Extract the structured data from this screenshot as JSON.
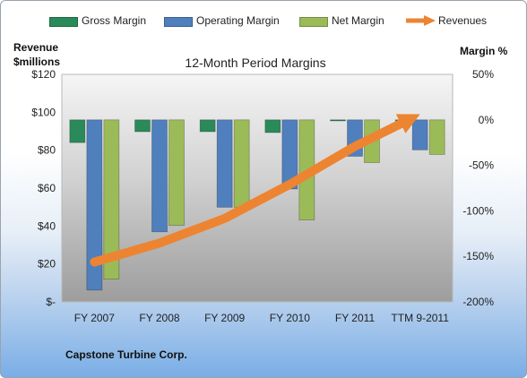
{
  "legend": {
    "gross": "Gross Margin",
    "operating": "Operating Margin",
    "net": "Net Margin",
    "revenues": "Revenues"
  },
  "left_axis_title": {
    "line1": "Revenue",
    "line2": "$millions"
  },
  "right_axis_title": "Margin %",
  "company": "Capstone Turbine Corp.",
  "colors": {
    "gross": "#2a8a5a",
    "operating": "#4f7fbd",
    "net": "#9bbb59",
    "revenues": "#ed8431"
  },
  "chart_data": {
    "type": "bar",
    "title": "12-Month Period Margins",
    "categories": [
      "FY 2007",
      "FY 2008",
      "FY 2009",
      "FY 2010",
      "FY 2011",
      "TTM 9-2011"
    ],
    "series": [
      {
        "name": "Gross Margin",
        "axis": "right",
        "values": [
          -25,
          -13,
          -13,
          -14,
          -1,
          0
        ]
      },
      {
        "name": "Operating Margin",
        "axis": "right",
        "values": [
          -187,
          -123,
          -96,
          -76,
          -40,
          -33
        ]
      },
      {
        "name": "Net Margin",
        "axis": "right",
        "values": [
          -175,
          -116,
          -96,
          -110,
          -47,
          -38
        ]
      },
      {
        "name": "Revenues",
        "axis": "left",
        "type": "line",
        "values": [
          21,
          31,
          44,
          62,
          82,
          99
        ]
      }
    ],
    "y_left": {
      "label": "Revenue $millions",
      "ylim": [
        0,
        120
      ],
      "ticks": [
        "$-",
        "$20",
        "$40",
        "$60",
        "$80",
        "$100",
        "$120"
      ]
    },
    "y_right": {
      "label": "Margin %",
      "ylim": [
        -200,
        50
      ],
      "ticks": [
        "-200%",
        "-150%",
        "-100%",
        "-50%",
        "0%",
        "50%"
      ]
    },
    "grid": false,
    "legend_position": "top"
  }
}
